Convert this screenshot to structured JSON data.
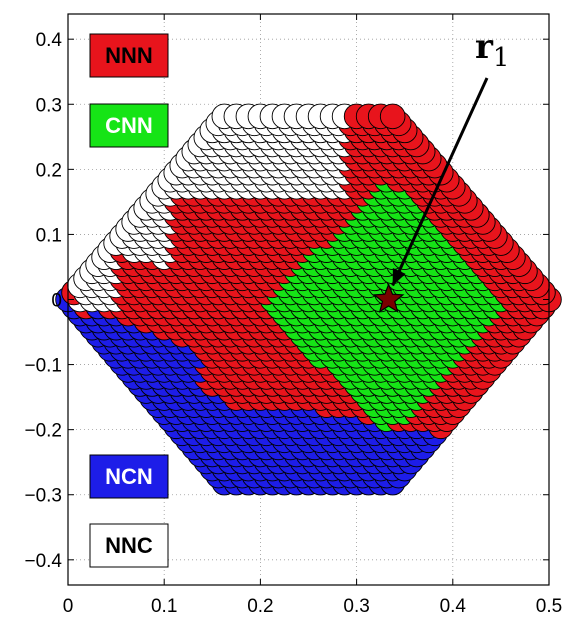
{
  "chart_data": {
    "type": "scatter",
    "title": "",
    "xlabel": "",
    "ylabel": "",
    "xlim": [
      0,
      0.5
    ],
    "ylim": [
      -0.4387,
      0.4387
    ],
    "x_ticks": [
      "0",
      "0.1",
      "0.2",
      "0.3",
      "0.4",
      "0.5"
    ],
    "y_ticks": [
      "0.4",
      "0.3",
      "0.2",
      "0.1",
      "0",
      "−0.1",
      "−0.2",
      "−0.3",
      "−0.4"
    ],
    "grid": true,
    "lattice": {
      "description_free": true,
      "step": 0.0125,
      "region_diamond": {
        "cx": 0.25,
        "cy": 0,
        "half_width": 0.25,
        "half_height": 0.433
      }
    },
    "series": [
      {
        "name": "NNN",
        "color": "#e8141c"
      },
      {
        "name": "CNN",
        "color": "#16e416"
      },
      {
        "name": "NCN",
        "color": "#1d1de8"
      },
      {
        "name": "NNC",
        "color": "#ffffff"
      }
    ],
    "marker": {
      "x": 0.3333,
      "y": 0,
      "color": "#7a0000"
    },
    "annotation": {
      "label_main": "r",
      "label_sub": "1"
    }
  }
}
